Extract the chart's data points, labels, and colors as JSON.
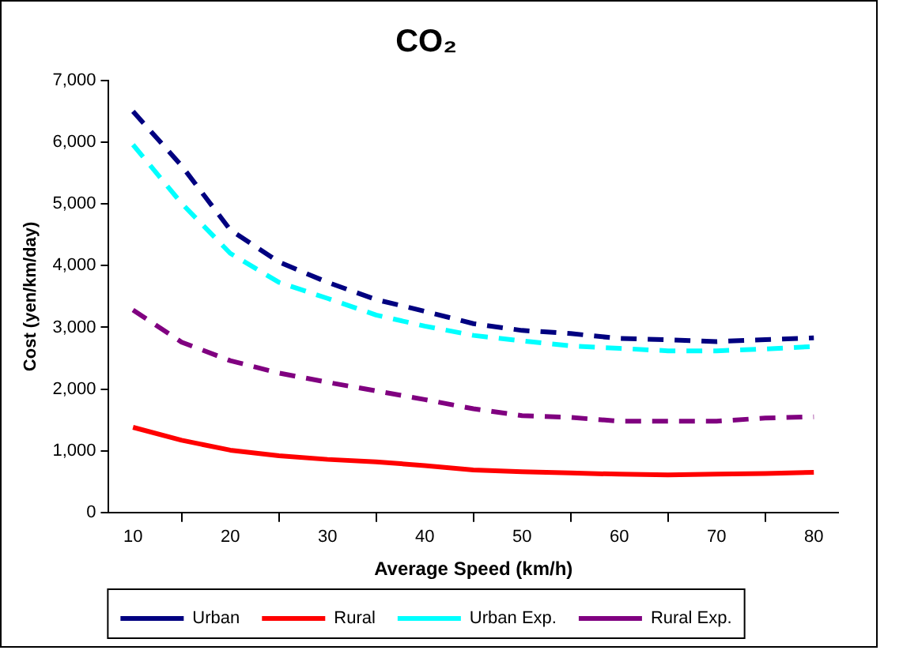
{
  "chart_data": {
    "type": "line",
    "title": "CO₂",
    "xlabel": "Average Speed (km/h)",
    "ylabel": "Cost (yen/km/day)",
    "categories": [
      "10",
      null,
      "20",
      null,
      "30",
      null,
      "40",
      null,
      "50",
      null,
      "60",
      null,
      "70",
      null,
      "80"
    ],
    "ylim": [
      0,
      7000
    ],
    "yticks": [
      0,
      {
        "value": 1000,
        "label": "1,000"
      },
      {
        "value": 2000,
        "label": "2,000"
      },
      {
        "value": 3000,
        "label": "3,000"
      },
      {
        "value": 4000,
        "label": "4,000"
      },
      {
        "value": 5000,
        "label": "5,000"
      },
      {
        "value": 6000,
        "label": "6,000"
      },
      {
        "value": 7000,
        "label": "7,000"
      }
    ],
    "grid": false,
    "legend": "bottom",
    "marker": "none",
    "series": [
      {
        "name": "Urban",
        "color": "#000080",
        "line_style": "dashed",
        "values": [
          6500,
          5620,
          4580,
          4060,
          3730,
          3450,
          3260,
          3060,
          2950,
          2900,
          2820,
          2800,
          2770,
          2800,
          2830
        ]
      },
      {
        "name": "Rural",
        "color": "#ff0000",
        "line_style": "solid",
        "values": [
          1380,
          1170,
          1010,
          920,
          860,
          820,
          760,
          690,
          660,
          640,
          620,
          610,
          620,
          630,
          650
        ]
      },
      {
        "name": "Urban Exp.",
        "color": "#00ffff",
        "line_style": "dashed",
        "values": [
          5960,
          5010,
          4200,
          3730,
          3470,
          3200,
          3020,
          2870,
          2780,
          2700,
          2660,
          2620,
          2620,
          2650,
          2690
        ]
      },
      {
        "name": "Rural Exp.",
        "color": "#800080",
        "line_style": "dashed",
        "values": [
          3280,
          2760,
          2460,
          2260,
          2110,
          1970,
          1830,
          1680,
          1570,
          1540,
          1480,
          1480,
          1480,
          1530,
          1550
        ]
      }
    ]
  }
}
